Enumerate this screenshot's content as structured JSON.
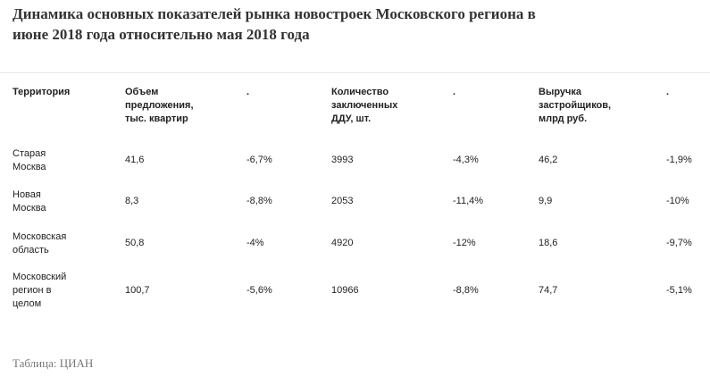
{
  "title": {
    "line1": "Динамика основных показателей рынка новостроек Московского региона в",
    "line2": "июне 2018 года относительно мая 2018 года"
  },
  "table": {
    "headers": [
      [
        "Территория"
      ],
      [
        "Объем",
        "предложения,",
        "тыс. квартир"
      ],
      [
        "."
      ],
      [
        "Количество",
        "заключенных",
        "ДДУ, шт."
      ],
      [
        "."
      ],
      [
        "Выручка",
        "застройщиков,",
        "млрд руб."
      ],
      [
        "."
      ]
    ],
    "rows": [
      {
        "name": [
          "Старая",
          "Москва"
        ],
        "values": [
          "41,6",
          "-6,7%",
          "3993",
          "-4,3%",
          "46,2",
          "-1,9%"
        ]
      },
      {
        "name": [
          "Новая",
          "Москва"
        ],
        "values": [
          "8,3",
          "-8,8%",
          "2053",
          "-11,4%",
          "9,9",
          "-10%"
        ]
      },
      {
        "name": [
          "Московская",
          "область"
        ],
        "values": [
          "50,8",
          "-4%",
          "4920",
          "-12%",
          "18,6",
          "-9,7%"
        ]
      },
      {
        "name": [
          "Московский",
          "регион в",
          "целом"
        ],
        "values": [
          "100,7",
          "-5,6%",
          "10966",
          "-8,8%",
          "74,7",
          "-5,1%"
        ]
      }
    ]
  },
  "source": "Таблица: ЦИАН"
}
